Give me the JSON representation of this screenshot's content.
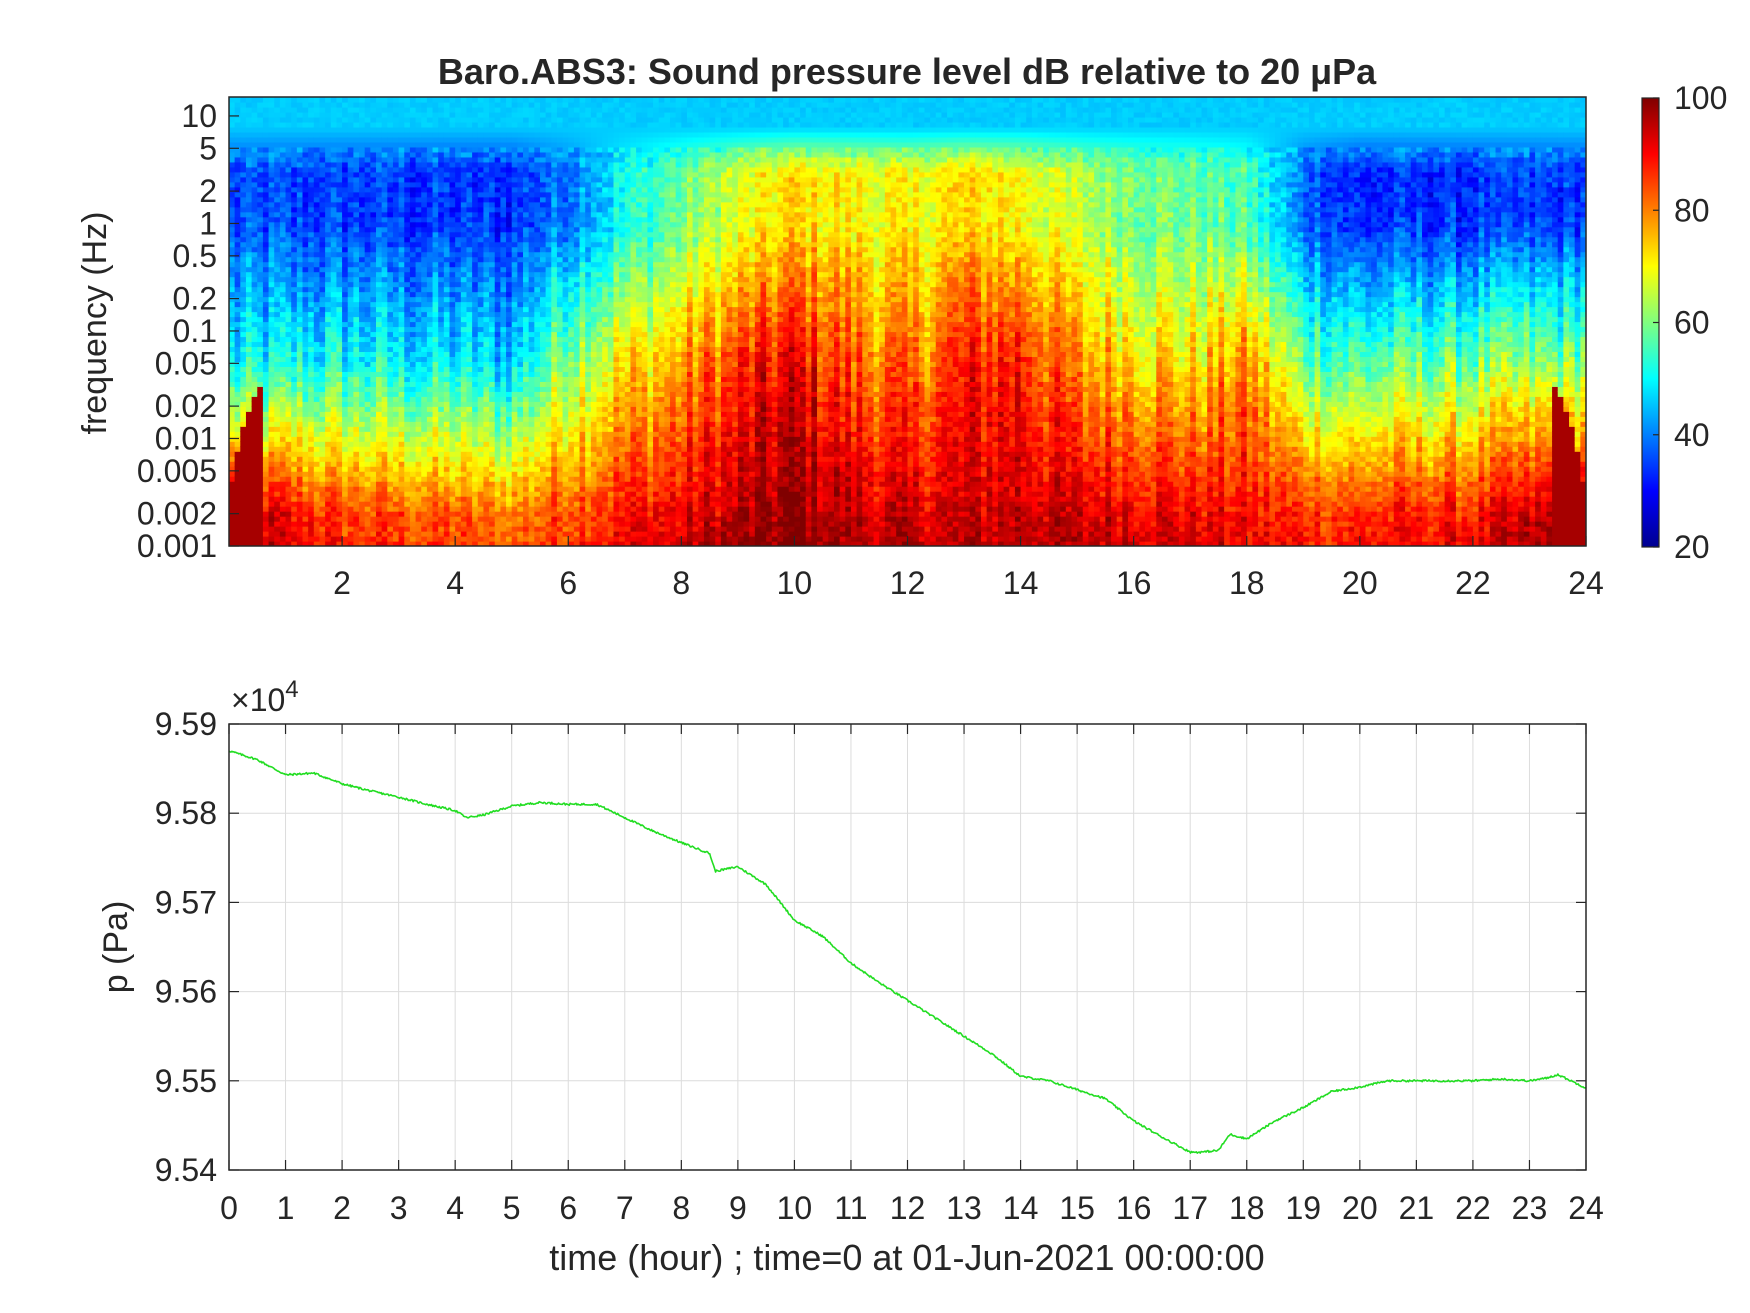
{
  "chart_data": [
    {
      "type": "heatmap",
      "title": "Baro.ABS3: Sound pressure level dB relative to 20 μPa",
      "xlabel": "",
      "ylabel": "frequency (Hz)",
      "xlim": [
        0,
        24
      ],
      "ylim": [
        0.001,
        15
      ],
      "yscale": "log",
      "xticks": [
        2,
        4,
        6,
        8,
        10,
        12,
        14,
        16,
        18,
        20,
        22,
        24
      ],
      "xtick_labels": [
        "2",
        "4",
        "6",
        "8",
        "10",
        "12",
        "14",
        "16",
        "18",
        "20",
        "22",
        "24"
      ],
      "yticks": [
        0.001,
        0.002,
        0.005,
        0.01,
        0.02,
        0.05,
        0.1,
        0.2,
        0.5,
        1,
        2,
        5,
        10
      ],
      "ytick_labels": [
        "0.001",
        "0.002",
        "0.005",
        "0.01",
        "0.02",
        "0.05",
        "0.1",
        "0.2",
        "0.5",
        "1",
        "2",
        "5",
        "10"
      ],
      "colormap": "jet",
      "colorbar": {
        "range": [
          20,
          100
        ],
        "ticks": [
          20,
          40,
          60,
          80,
          100
        ],
        "tick_labels": [
          "20",
          "40",
          "60",
          "80",
          "100"
        ]
      },
      "approx_level_profile_dB": {
        "description_hours": [
          0,
          2,
          4,
          5,
          6,
          7,
          8,
          9,
          10,
          11,
          12,
          13,
          14,
          15,
          16,
          17,
          18,
          19,
          20,
          22,
          24
        ],
        "high_freq_band_1Hz": [
          35,
          34,
          33,
          33,
          40,
          50,
          58,
          66,
          72,
          70,
          68,
          72,
          70,
          64,
          60,
          58,
          55,
          38,
          32,
          33,
          34
        ],
        "mid_band_0.05Hz": [
          48,
          50,
          47,
          45,
          62,
          70,
          76,
          84,
          90,
          82,
          78,
          86,
          88,
          76,
          74,
          70,
          78,
          58,
          55,
          58,
          60
        ],
        "low_band_0.002Hz": [
          95,
          84,
          82,
          80,
          84,
          88,
          90,
          94,
          98,
          94,
          92,
          92,
          94,
          92,
          92,
          90,
          88,
          86,
          86,
          88,
          96
        ]
      }
    },
    {
      "type": "line",
      "title": "",
      "xlabel": "time (hour) ; time=0 at 01-Jun-2021 00:00:00",
      "ylabel": "p (Pa)",
      "y_exponent_label": "×10",
      "y_exponent_power": "4",
      "xlim": [
        0,
        24
      ],
      "ylim": [
        95400,
        95900
      ],
      "grid": true,
      "xticks": [
        0,
        1,
        2,
        3,
        4,
        5,
        6,
        7,
        8,
        9,
        10,
        11,
        12,
        13,
        14,
        15,
        16,
        17,
        18,
        19,
        20,
        21,
        22,
        23,
        24
      ],
      "xtick_labels": [
        "0",
        "1",
        "2",
        "3",
        "4",
        "5",
        "6",
        "7",
        "8",
        "9",
        "10",
        "11",
        "12",
        "13",
        "14",
        "15",
        "16",
        "17",
        "18",
        "19",
        "20",
        "21",
        "22",
        "23",
        "24"
      ],
      "yticks": [
        95400,
        95500,
        95600,
        95700,
        95800,
        95900
      ],
      "ytick_labels": [
        "9.54",
        "9.55",
        "9.56",
        "9.57",
        "9.58",
        "9.59"
      ],
      "line_color": "#22dd22",
      "series": [
        {
          "x": [
            0,
            0.5,
            1,
            1.5,
            2,
            2.5,
            3,
            3.5,
            4,
            4.2,
            4.5,
            5,
            5.5,
            6,
            6.5,
            7,
            7.5,
            8,
            8.5,
            8.6,
            9,
            9.5,
            10,
            10.5,
            11,
            11.5,
            12,
            12.5,
            13,
            13.5,
            14,
            14.5,
            15,
            15.5,
            16,
            16.5,
            17,
            17.2,
            17.5,
            17.7,
            18,
            18.5,
            19,
            19.5,
            20,
            20.5,
            21,
            21.5,
            22,
            22.5,
            23,
            23.3,
            23.5,
            24
          ],
          "y": [
            95870,
            95860,
            95843,
            95845,
            95833,
            95825,
            95818,
            95810,
            95803,
            95795,
            95798,
            95808,
            95812,
            95810,
            95810,
            95795,
            95780,
            95767,
            95755,
            95735,
            95740,
            95720,
            95680,
            95662,
            95632,
            95610,
            95590,
            95570,
            95550,
            95530,
            95505,
            95500,
            95490,
            95480,
            95455,
            95437,
            95420,
            95420,
            95422,
            95440,
            95435,
            95455,
            95470,
            95488,
            95493,
            95500,
            95500,
            95500,
            95500,
            95502,
            95500,
            95503,
            95507,
            95492
          ]
        }
      ]
    }
  ]
}
